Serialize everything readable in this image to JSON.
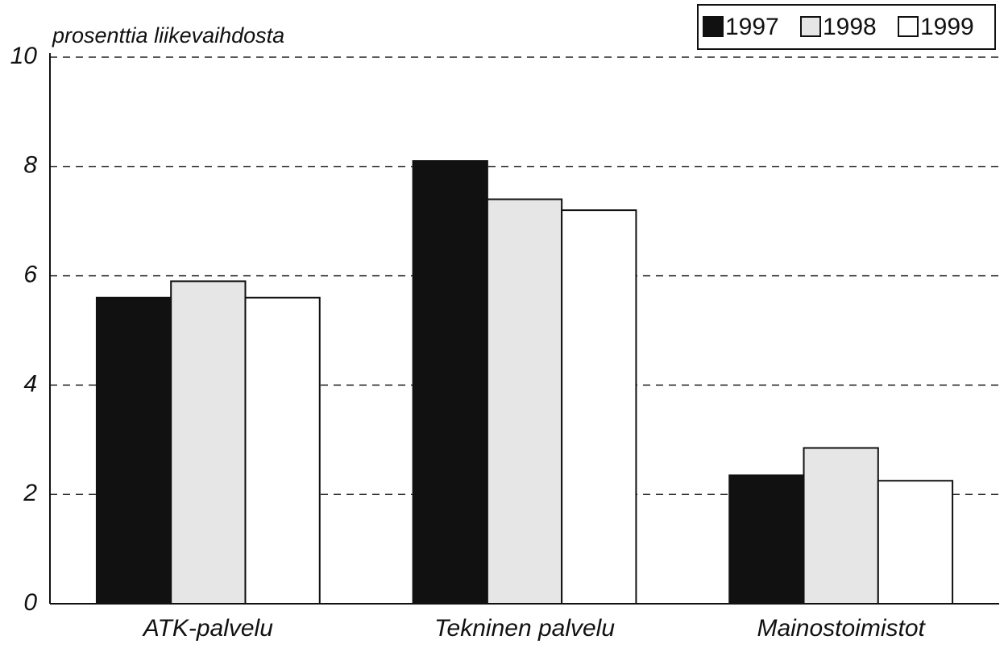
{
  "chart_data": {
    "type": "bar",
    "y_axis_label": "prosenttia liikevaihdosta",
    "categories": [
      "ATK-palvelu",
      "Tekninen palvelu",
      "Mainostoimistot"
    ],
    "series": [
      {
        "name": "1997",
        "color": "#111111",
        "values": [
          5.6,
          8.1,
          2.35
        ]
      },
      {
        "name": "1998",
        "color": "#e6e6e6",
        "values": [
          5.9,
          7.4,
          2.85
        ]
      },
      {
        "name": "1999",
        "color": "#ffffff",
        "values": [
          5.6,
          7.2,
          2.25
        ]
      }
    ],
    "ylim": [
      0,
      10
    ],
    "yticks": [
      0,
      2,
      4,
      6,
      8,
      10
    ],
    "grid": true,
    "legend": "top-right"
  }
}
